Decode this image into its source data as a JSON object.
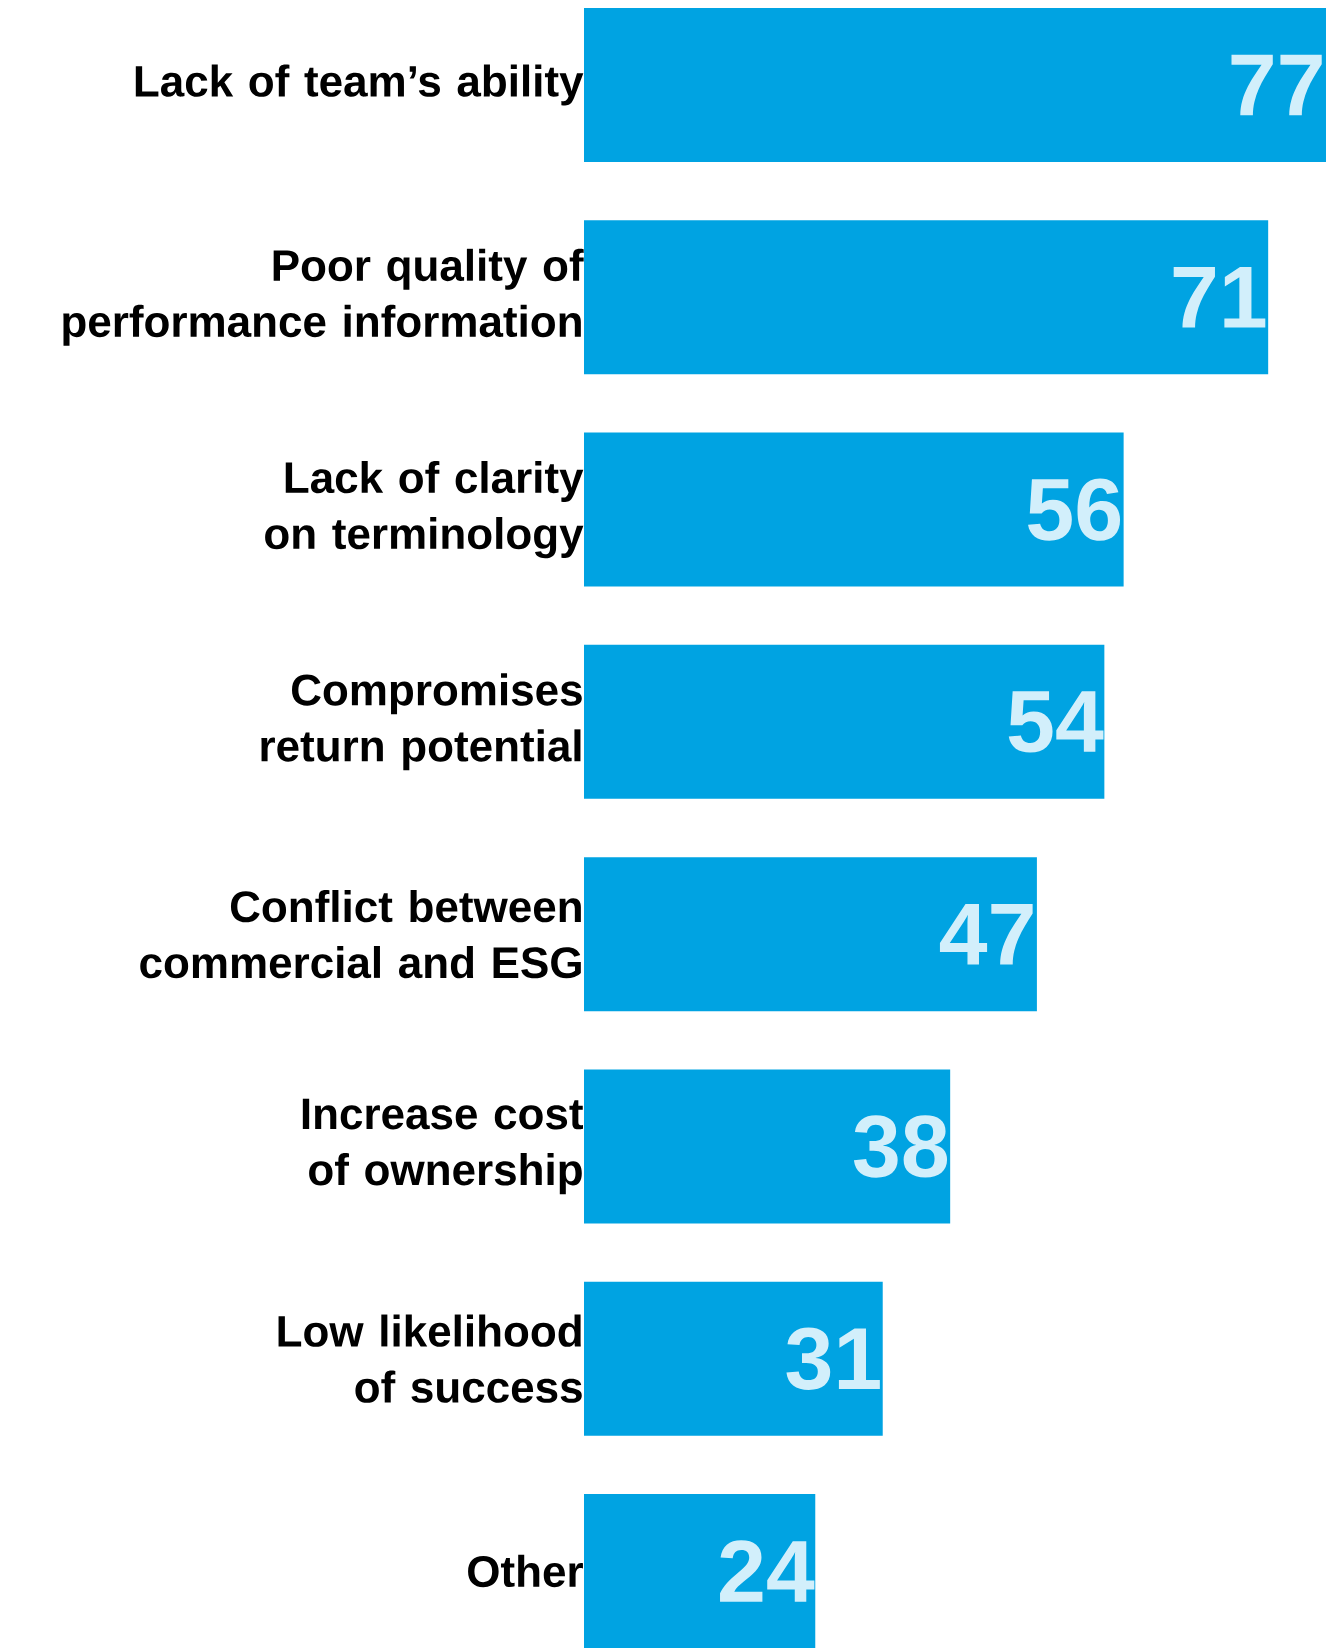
{
  "chart_data": {
    "type": "bar",
    "orientation": "horizontal",
    "categories": [
      "Lack of team’s ability",
      "Poor quality of performance information",
      "Lack of clarity on terminology",
      "Compromises return potential",
      "Conflict between commercial and ESG",
      "Increase cost of ownership",
      "Low likelihood of success",
      "Other"
    ],
    "values": [
      77,
      71,
      56,
      54,
      47,
      38,
      31,
      24
    ],
    "color": "#00a3e2",
    "xlim": [
      0,
      77
    ],
    "data_labels": true
  }
}
